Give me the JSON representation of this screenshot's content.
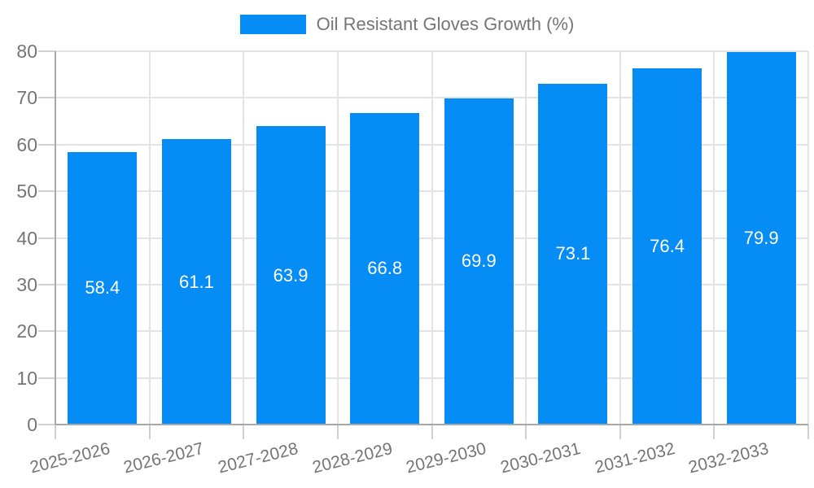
{
  "legend": {
    "label": "Oil Resistant Gloves Growth (%)",
    "swatch_color": "#068cf5"
  },
  "chart_data": {
    "type": "bar",
    "title": "Oil Resistant Gloves Growth (%)",
    "categories": [
      "2025-2026",
      "2026-2027",
      "2027-2028",
      "2028-2029",
      "2029-2030",
      "2030-2031",
      "2031-2032",
      "2032-2033"
    ],
    "values": [
      58.4,
      61.1,
      63.9,
      66.8,
      69.9,
      73.1,
      76.4,
      79.9
    ],
    "value_labels": [
      "58.4",
      "61.1",
      "63.9",
      "66.8",
      "69.9",
      "73.1",
      "76.4",
      "79.9"
    ],
    "series": [
      {
        "name": "Oil Resistant Gloves Growth (%)",
        "values": [
          58.4,
          61.1,
          63.9,
          66.8,
          69.9,
          73.1,
          76.4,
          79.9
        ]
      }
    ],
    "xlabel": "",
    "ylabel": "",
    "ylim": [
      0,
      80
    ],
    "yticks": [
      0,
      10,
      20,
      30,
      40,
      50,
      60,
      70,
      80
    ],
    "grid": true,
    "legend_position": "top",
    "x_label_rotation_deg": -14,
    "bar_color": "#068cf5",
    "value_label_color": "#ffffff",
    "axis_text_color": "#757575",
    "gridline_color": "#e3e3e3",
    "tick_color": "#d0d0d0",
    "axis_line_color": "#a8a8a8"
  }
}
